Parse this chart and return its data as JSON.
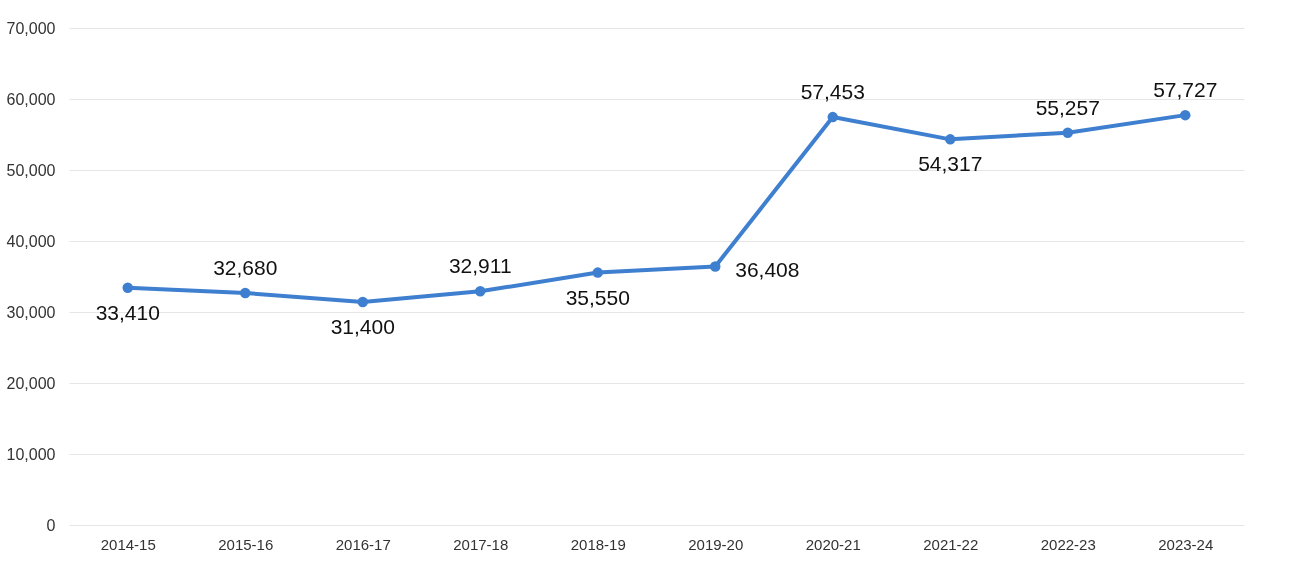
{
  "chart_data": {
    "type": "line",
    "categories": [
      "2014-15",
      "2015-16",
      "2016-17",
      "2017-18",
      "2018-19",
      "2019-20",
      "2020-21",
      "2021-22",
      "2022-23",
      "2023-24"
    ],
    "series": [
      {
        "color": "#3f7fcf",
        "values": [
          33410,
          32680,
          31400,
          32911,
          35550,
          36408,
          57453,
          54317,
          55257,
          57727
        ],
        "value_labels": [
          "33,410",
          "32,680",
          "31,400",
          "32,911",
          "35,550",
          "36,408",
          "57,453",
          "54,317",
          "55,257",
          "57,727"
        ]
      }
    ],
    "ylim": [
      0,
      70000
    ],
    "yticks": [
      0,
      {
        "value": 10000,
        "label": "10,000"
      },
      {
        "value": 20000,
        "label": "20,000"
      },
      {
        "value": 30000,
        "label": "30,000"
      },
      {
        "value": 40000,
        "label": "40,000"
      },
      {
        "value": 50000,
        "label": "50,000"
      },
      {
        "value": 60000,
        "label": "60,000"
      },
      {
        "value": 70000,
        "label": "70,000"
      }
    ],
    "grid": "y",
    "marker": "circle",
    "line_style": "solid"
  }
}
